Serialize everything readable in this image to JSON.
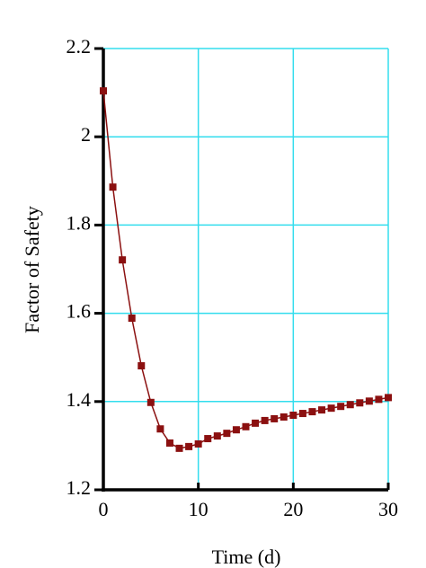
{
  "chart_data": {
    "type": "line",
    "x_label": "Time (d)",
    "y_label": "Factor of Safety",
    "x": [
      0,
      1,
      2,
      3,
      4,
      5,
      6,
      7,
      8,
      9,
      10,
      11,
      12,
      13,
      14,
      15,
      16,
      17,
      18,
      19,
      20,
      21,
      22,
      23,
      24,
      25,
      26,
      27,
      28,
      29,
      30
    ],
    "series": [
      {
        "color": "#8b1010",
        "values": [
          2.104,
          1.886,
          1.721,
          1.589,
          1.481,
          1.398,
          1.338,
          1.306,
          1.294,
          1.298,
          1.304,
          1.316,
          1.322,
          1.328,
          1.336,
          1.343,
          1.351,
          1.357,
          1.361,
          1.365,
          1.369,
          1.373,
          1.377,
          1.381,
          1.385,
          1.389,
          1.393,
          1.397,
          1.401,
          1.405,
          1.409
        ]
      }
    ],
    "xlim": [
      0,
      30
    ],
    "xticks": [
      0,
      10,
      20,
      30
    ],
    "ylim": [
      1.2,
      2.2
    ],
    "yticks": [
      1.2,
      1.4,
      1.6,
      1.8,
      2,
      2.2
    ],
    "grid": true,
    "grid_color": "#33ddee"
  }
}
